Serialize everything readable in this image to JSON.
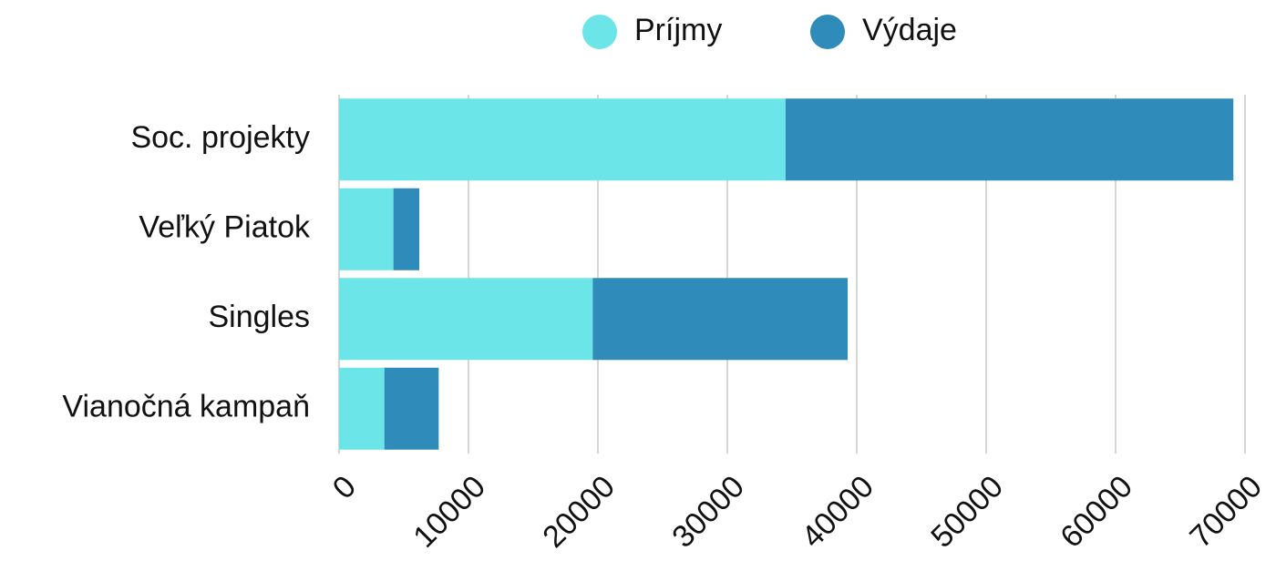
{
  "chart_data": {
    "type": "bar",
    "orientation": "horizontal",
    "stacked": true,
    "categories": [
      "Soc. projekty",
      "Veľký Piatok",
      "Singles",
      "Vianočná kampaň"
    ],
    "series": [
      {
        "name": "Príjmy",
        "color": "#6ce5e8",
        "values": [
          34500,
          4200,
          19600,
          3500
        ]
      },
      {
        "name": "Výdaje",
        "color": "#2e8bba",
        "values": [
          34600,
          2000,
          19700,
          4200
        ]
      }
    ],
    "xlim": [
      0,
      70000
    ],
    "xticks": [
      0,
      10000,
      20000,
      30000,
      40000,
      50000,
      60000,
      70000
    ],
    "grid": true,
    "legend": "top"
  }
}
